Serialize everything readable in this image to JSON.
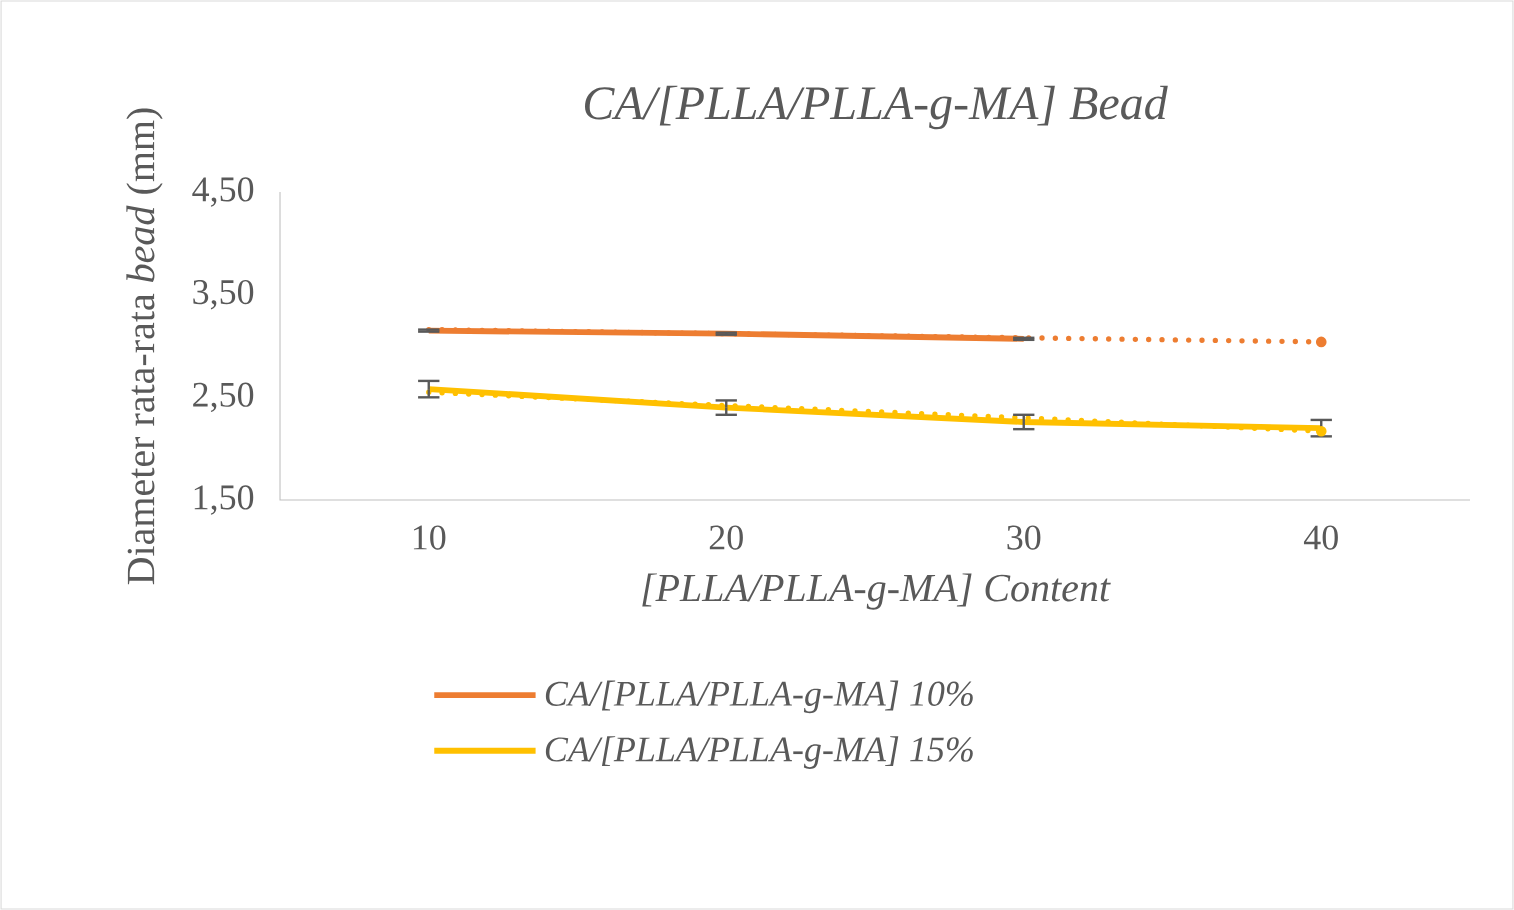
{
  "chart_data": {
    "type": "line",
    "title": "CA/[PLLA/PLLA-g-MA] Bead",
    "xlabel": "[PLLA/PLLA-g-MA] Content",
    "ylabel": "Diameter rata-rata *bead* (mm)",
    "categories": [
      "10",
      "20",
      "30",
      "40"
    ],
    "series": [
      {
        "name": "CA/[PLLA/PLLA-g-MA] 10%",
        "color": "#ed7d31",
        "values": [
          3.15,
          3.12,
          3.07,
          null
        ],
        "errors": [
          0.01,
          0.01,
          0.01,
          null
        ]
      },
      {
        "name": "CA/[PLLA/PLLA-g-MA] 15%",
        "color": "#ffc000",
        "values": [
          2.58,
          2.4,
          2.26,
          2.2
        ],
        "errors": [
          0.08,
          0.07,
          0.07,
          0.08
        ]
      },
      {
        "type": "line",
        "color": "#ed7d31",
        "line_style": "dotted",
        "values": [
          3.16,
          3.12,
          3.08,
          3.04
        ]
      },
      {
        "type": "line",
        "color": "#ffc000",
        "line_style": "dotted",
        "values": [
          2.55,
          2.42,
          2.3,
          2.17
        ]
      }
    ],
    "ylim": [
      1.5,
      4.5
    ],
    "yticks": [
      {
        "value": 1.5,
        "label": "1,50"
      },
      {
        "value": 2.5,
        "label": "2,50"
      },
      {
        "value": 3.5,
        "label": "3,50"
      },
      {
        "value": 4.5,
        "label": "4,50"
      }
    ],
    "legend": "bottom",
    "grid": false,
    "marker": "none",
    "line_style": "solid"
  }
}
